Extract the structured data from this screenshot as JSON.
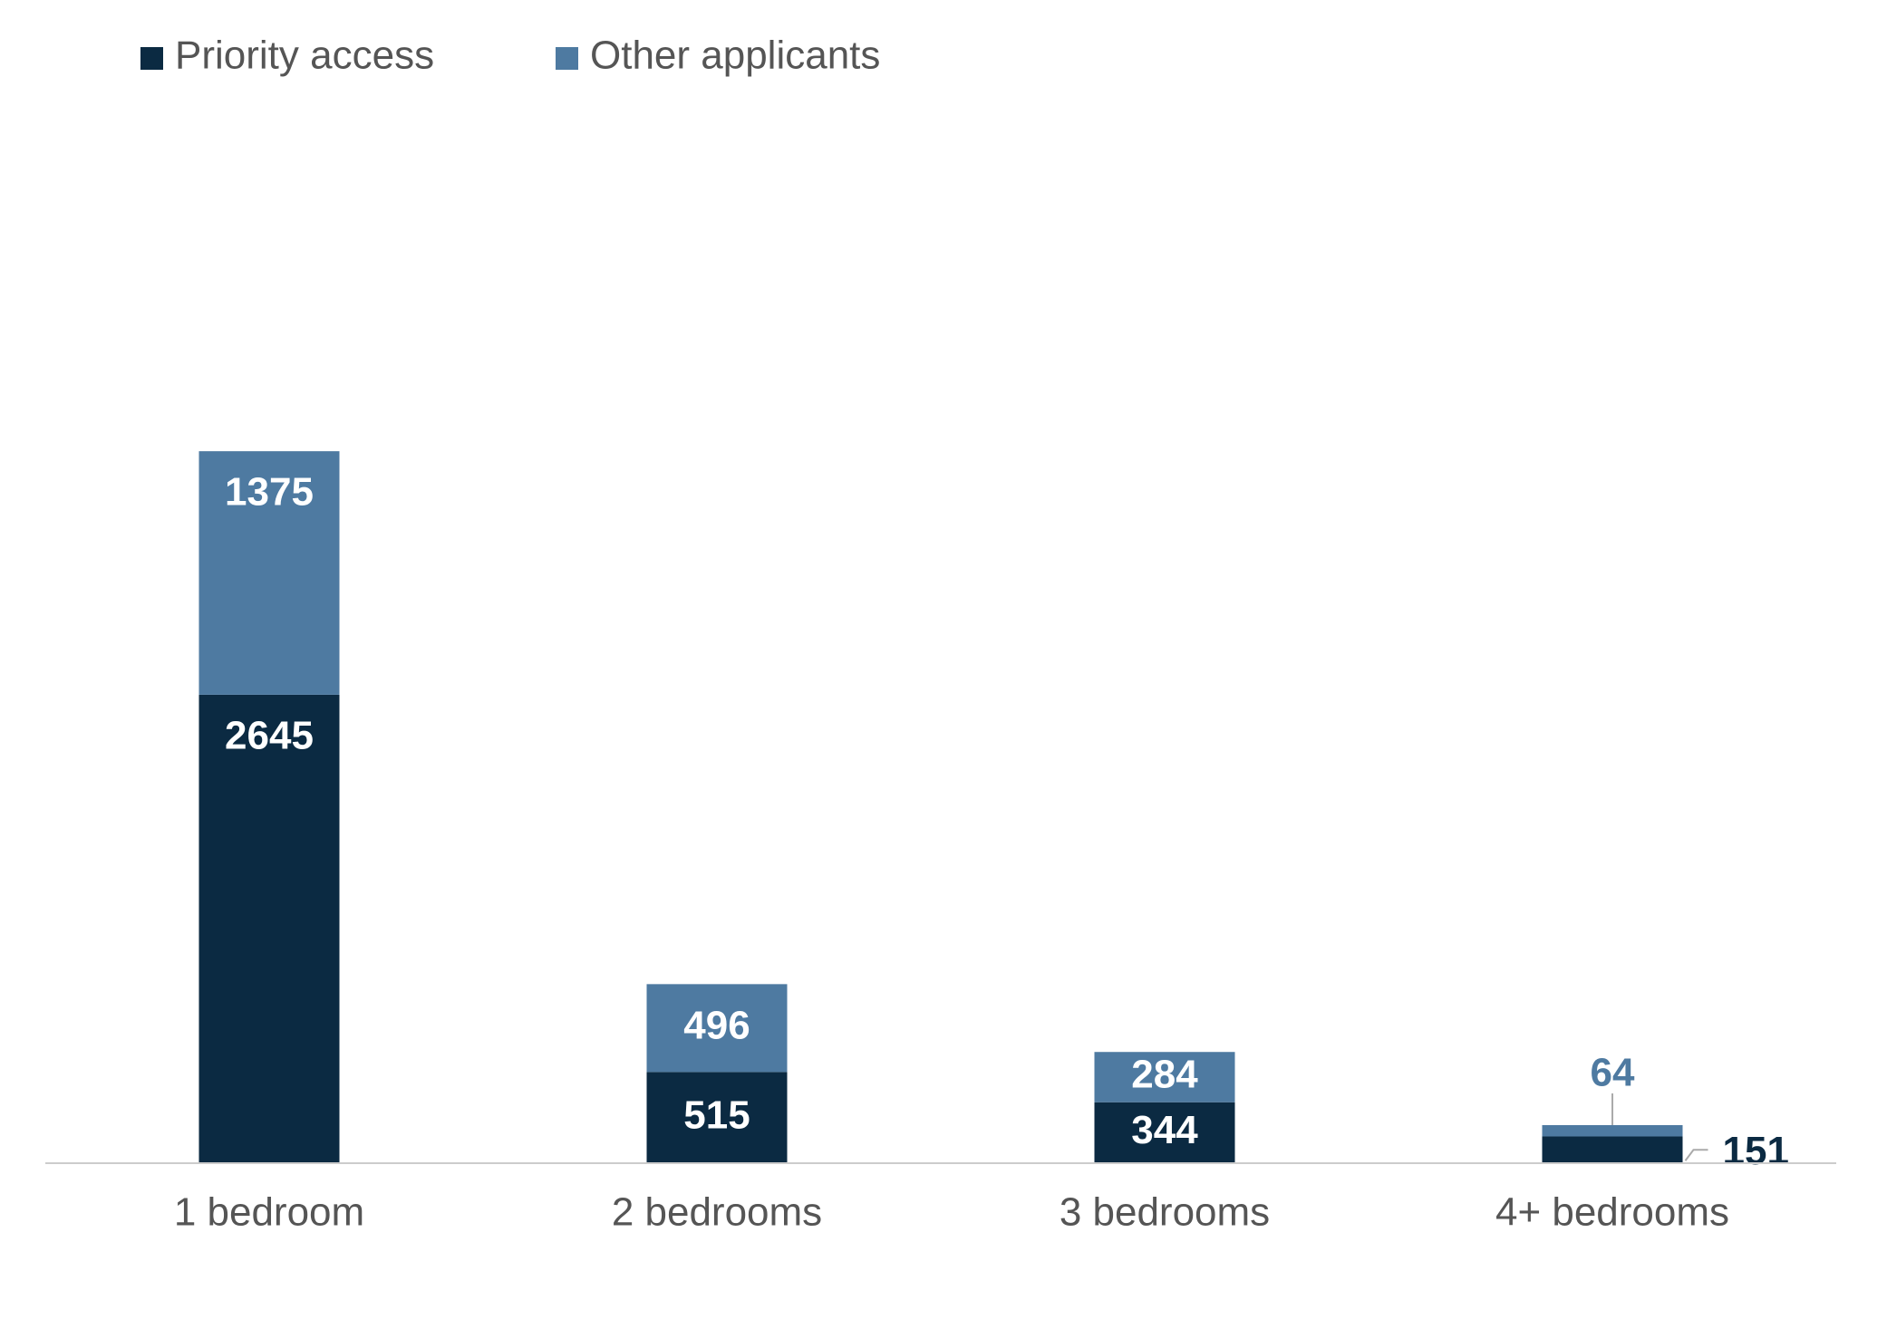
{
  "chart_data": {
    "type": "bar",
    "stacked": true,
    "categories": [
      "1 bedroom",
      "2 bedrooms",
      "3 bedrooms",
      "4+ bedrooms"
    ],
    "series": [
      {
        "name": "Priority access",
        "color": "#0b2a42",
        "values": [
          2645,
          515,
          344,
          151
        ],
        "value_labels": [
          "2645",
          "515",
          "344",
          "151"
        ]
      },
      {
        "name": "Other applicants",
        "color": "#4e7aa1",
        "values": [
          1375,
          496,
          284,
          64
        ],
        "value_labels": [
          "1375",
          "496",
          "284",
          "64"
        ]
      }
    ],
    "title": "",
    "xlabel": "",
    "ylabel": "",
    "ylim": [
      0,
      4500
    ],
    "grid": false,
    "legend_position": "top-left",
    "axis_color": "#cccccc"
  }
}
